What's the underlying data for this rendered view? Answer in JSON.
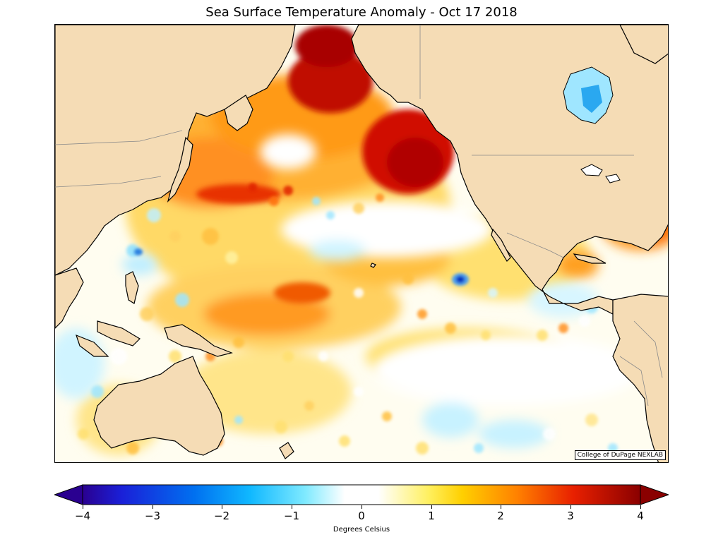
{
  "title": "Sea Surface Temperature Anomaly - Oct 17 2018",
  "credit": "College of DuPage NEXLAB",
  "colorbar": {
    "label": "Degrees Celsius",
    "ticks": [
      "−4",
      "−3",
      "−2",
      "−1",
      "0",
      "1",
      "2",
      "3",
      "4"
    ],
    "range": [
      -4,
      4
    ],
    "extend": "both"
  },
  "colors": {
    "land": "#f5dcb5",
    "neutral": "#ffffff",
    "warm_strong": "#b00000",
    "cool_strong": "#0030c0"
  }
}
